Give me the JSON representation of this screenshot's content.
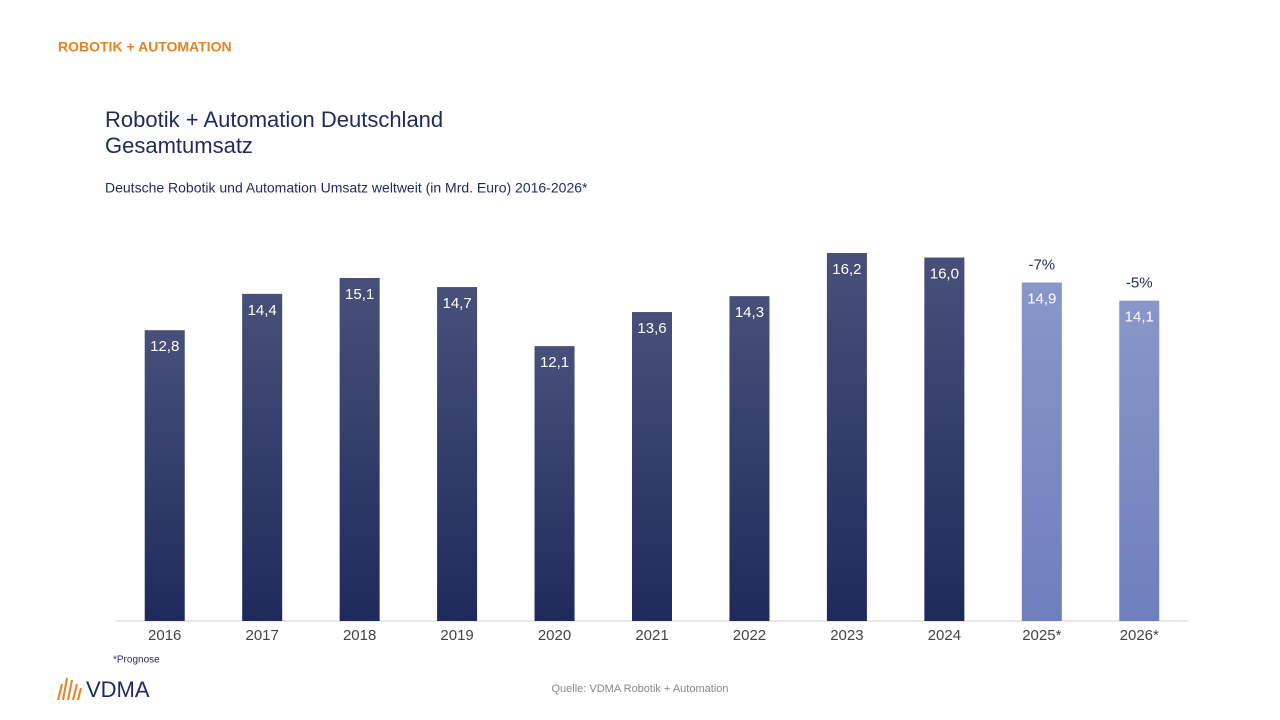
{
  "header": "ROBOTIK + AUTOMATION",
  "chart_data": {
    "type": "bar",
    "title": "Robotik + Automation Deutschland",
    "title_line2": "Gesamtumsatz",
    "subtitle": "Deutsche Robotik und Automation Umsatz weltweit (in Mrd. Euro) 2016-2026*",
    "categories": [
      "2016",
      "2017",
      "2018",
      "2019",
      "2020",
      "2021",
      "2022",
      "2023",
      "2024",
      "2025*",
      "2026*"
    ],
    "values": [
      12.8,
      14.4,
      15.1,
      14.7,
      12.1,
      13.6,
      14.3,
      16.2,
      16.0,
      14.9,
      14.1
    ],
    "value_labels": [
      "12,8",
      "14,4",
      "15,1",
      "14,7",
      "12,1",
      "13,6",
      "14,3",
      "16,2",
      "16,0",
      "14,9",
      "14,1"
    ],
    "colors": [
      "#1f2a5c",
      "#1f2a5c",
      "#1f2a5c",
      "#1f2a5c",
      "#1f2a5c",
      "#1f2a5c",
      "#1f2a5c",
      "#1f2a5c",
      "#1f2a5c",
      "#6f7fbd",
      "#6f7fbd"
    ],
    "annotations": [
      {
        "text": "-7%",
        "category": "2025*"
      },
      {
        "text": "-5%",
        "category": "2026*"
      }
    ],
    "footnote": "*Prognose",
    "source": "Quelle: VDMA Robotik + Automation"
  },
  "logo": "VDMA"
}
